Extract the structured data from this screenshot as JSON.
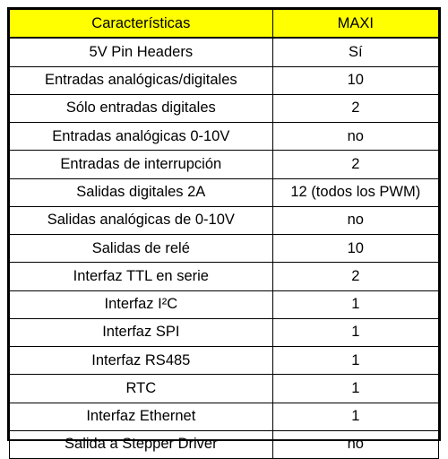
{
  "table": {
    "headers": [
      "Características",
      "MAXI"
    ],
    "header_bg": "#ffff00",
    "rows": [
      [
        "5V Pin Headers",
        "Sí"
      ],
      [
        "Entradas analógicas/digitales",
        "10"
      ],
      [
        "Sólo entradas digitales",
        "2"
      ],
      [
        "Entradas analógicas 0-10V",
        "no"
      ],
      [
        "Entradas de interrupción",
        "2"
      ],
      [
        "Salidas digitales 2A",
        "12 (todos los PWM)"
      ],
      [
        "Salidas analógicas de 0-10V",
        "no"
      ],
      [
        "Salidas de relé",
        "10"
      ],
      [
        "Interfaz TTL en serie",
        "2"
      ],
      [
        "Interfaz I²C",
        "1"
      ],
      [
        "Interfaz SPI",
        "1"
      ],
      [
        "Interfaz RS485",
        "1"
      ],
      [
        "RTC",
        "1"
      ],
      [
        "Interfaz Ethernet",
        "1"
      ],
      [
        "Salida a Stepper Driver",
        "no"
      ]
    ]
  }
}
